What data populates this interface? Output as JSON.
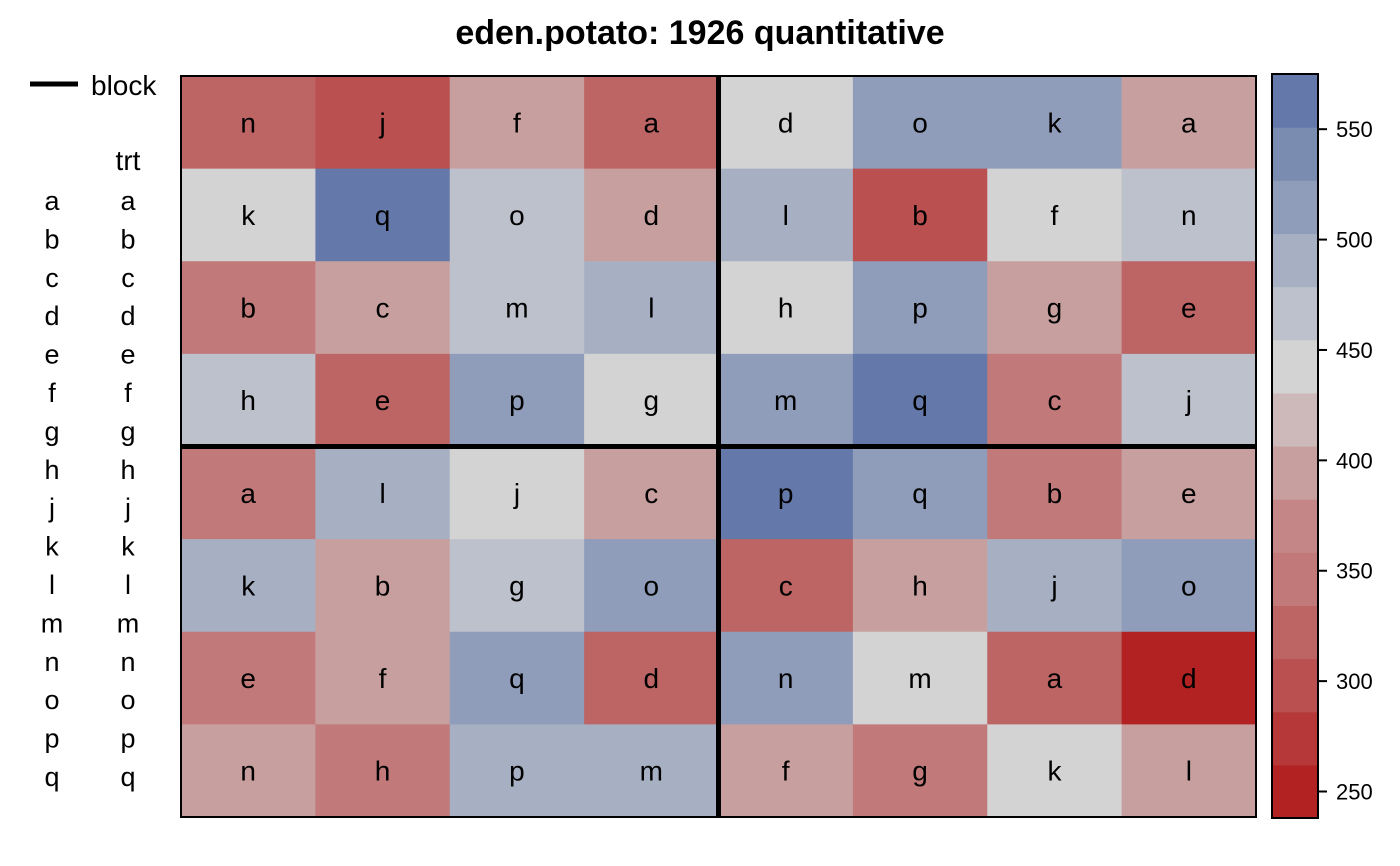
{
  "chart_data": {
    "type": "heatmap",
    "title": "eden.potato: 1926 quantitative",
    "legend": {
      "block_label": "block",
      "trt_header": "trt",
      "left_column": [
        "a",
        "b",
        "c",
        "d",
        "e",
        "f",
        "g",
        "h",
        "j",
        "k",
        "l",
        "m",
        "n",
        "o",
        "p",
        "q"
      ],
      "right_column": [
        "a",
        "b",
        "c",
        "d",
        "e",
        "f",
        "g",
        "h",
        "j",
        "k",
        "l",
        "m",
        "n",
        "o",
        "p",
        "q"
      ]
    },
    "grid": {
      "rows": 8,
      "cols": 8,
      "labels": [
        [
          "n",
          "j",
          "f",
          "a",
          "d",
          "o",
          "k",
          "a"
        ],
        [
          "k",
          "q",
          "o",
          "d",
          "l",
          "b",
          "f",
          "n"
        ],
        [
          "b",
          "c",
          "m",
          "l",
          "h",
          "p",
          "g",
          "e"
        ],
        [
          "h",
          "e",
          "p",
          "g",
          "m",
          "q",
          "c",
          "j"
        ],
        [
          "a",
          "l",
          "j",
          "c",
          "p",
          "q",
          "b",
          "e"
        ],
        [
          "k",
          "b",
          "g",
          "o",
          "c",
          "h",
          "j",
          "o"
        ],
        [
          "e",
          "f",
          "q",
          "d",
          "n",
          "m",
          "a",
          "d"
        ],
        [
          "n",
          "h",
          "p",
          "m",
          "f",
          "g",
          "k",
          "l"
        ]
      ],
      "values": [
        [
          325,
          305,
          385,
          325,
          435,
          525,
          525,
          405
        ],
        [
          435,
          570,
          465,
          385,
          485,
          305,
          435,
          465
        ],
        [
          345,
          385,
          465,
          485,
          435,
          505,
          405,
          325
        ],
        [
          465,
          325,
          525,
          435,
          505,
          570,
          345,
          465
        ],
        [
          345,
          485,
          435,
          385,
          570,
          525,
          345,
          405
        ],
        [
          485,
          385,
          465,
          505,
          325,
          385,
          485,
          505
        ],
        [
          345,
          385,
          525,
          325,
          505,
          435,
          325,
          250
        ],
        [
          385,
          345,
          485,
          485,
          405,
          345,
          435,
          405
        ]
      ],
      "block_boundaries": {
        "rows_after": 4,
        "cols_after": 4
      }
    },
    "colorbar": {
      "range": [
        238,
        575
      ],
      "ticks": [
        250,
        300,
        350,
        400,
        450,
        500,
        550
      ],
      "colors": [
        "#b22222",
        "#b63838",
        "#ba5050",
        "#bd6464",
        "#c17979",
        "#c48686",
        "#c89f9f",
        "#cdb9b9",
        "#d3d3d3",
        "#bcc1cc",
        "#a7b0c3",
        "#8f9dba",
        "#7a8caf",
        "#6479aa"
      ]
    }
  }
}
